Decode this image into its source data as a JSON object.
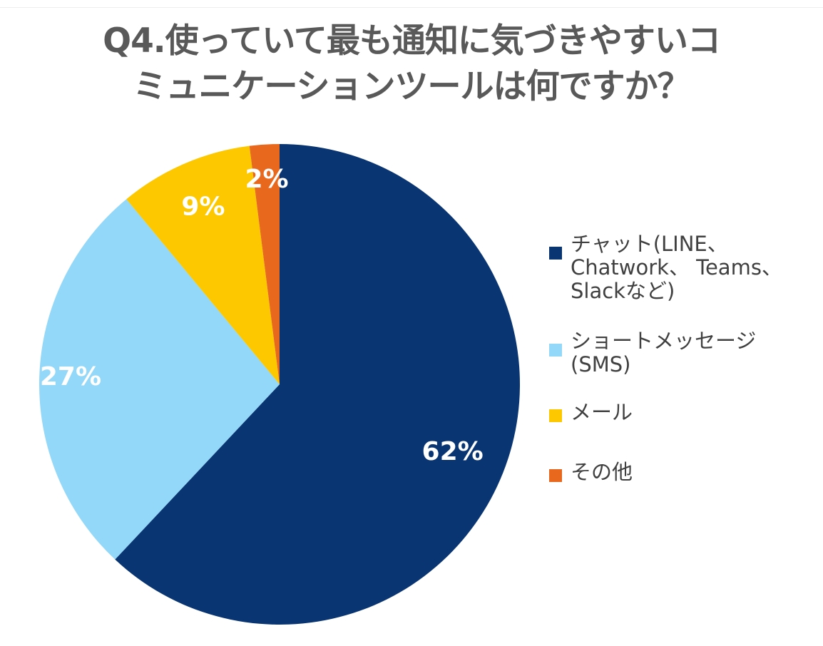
{
  "chart_data": {
    "type": "pie",
    "title_lines": [
      "Q4.使っていて最も通知に気づきやすいコ",
      "ミュニケーションツールは何ですか？"
    ],
    "slices": [
      {
        "label": "チャット(LINE、\nChatwork、 Teams、\nSlackなど)",
        "value": 62,
        "value_label": "62%",
        "color": "#0a3573"
      },
      {
        "label": "ショートメッセージ\n(SMS)",
        "value": 27,
        "value_label": "27%",
        "color": "#93d8f8"
      },
      {
        "label": "メール",
        "value": 9,
        "value_label": "9%",
        "color": "#fdc800"
      },
      {
        "label": "その他",
        "value": 2,
        "value_label": "2%",
        "color": "#e8681e"
      }
    ],
    "legend_position": "right",
    "start_angle": "top, clockwise"
  }
}
